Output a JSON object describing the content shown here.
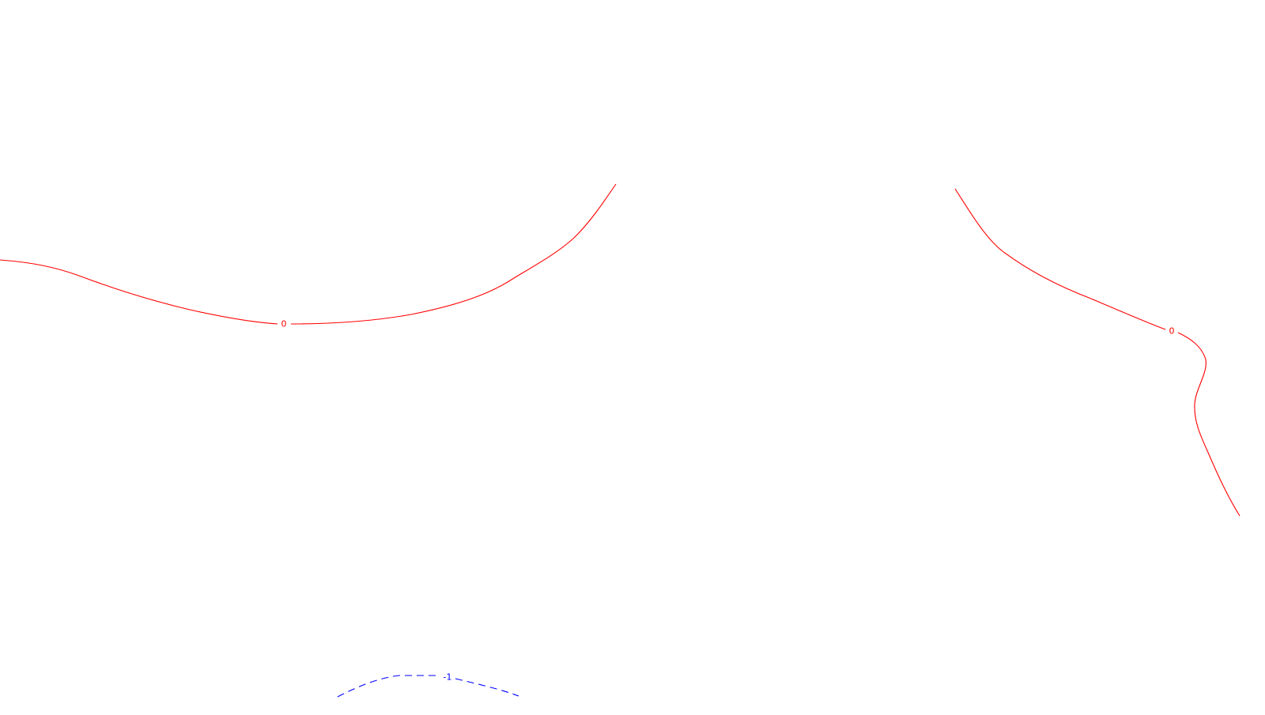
{
  "map": {
    "background": "#ffffff",
    "contours": [
      {
        "id": "contour-zero-west",
        "level_label": "0",
        "color": "#ff0000",
        "style": "solid"
      },
      {
        "id": "contour-zero-east",
        "level_label": "0",
        "color": "#ff0000",
        "style": "solid"
      },
      {
        "id": "contour-minus-one",
        "level_label": "-1",
        "color": "#0000ff",
        "style": "dashed"
      }
    ]
  }
}
